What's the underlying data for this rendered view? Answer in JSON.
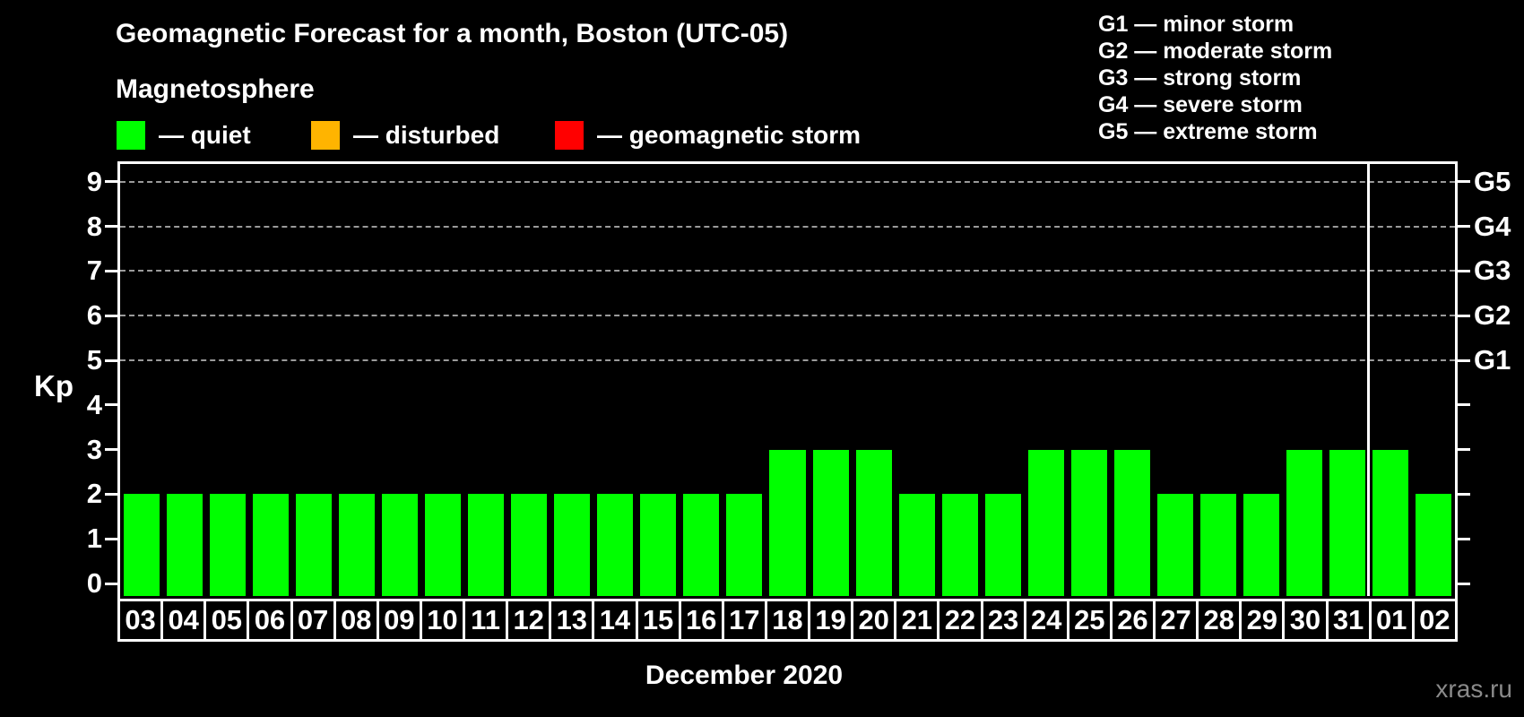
{
  "header": {
    "title": "Geomagnetic Forecast for a month, Boston (UTC-05)",
    "subtitle": "Magnetosphere"
  },
  "magnetosphere_legend": [
    {
      "name": "quiet",
      "label": "— quiet",
      "color": "#00ff00"
    },
    {
      "name": "disturbed",
      "label": "— disturbed",
      "color": "#ffb400"
    },
    {
      "name": "geomagnetic-storm",
      "label": "— geomagnetic storm",
      "color": "#ff0000"
    }
  ],
  "storm_scale_legend": [
    "G1 — minor storm",
    "G2 — moderate storm",
    "G3 — strong storm",
    "G4 — severe storm",
    "G5 — extreme storm"
  ],
  "chart_data": {
    "type": "bar",
    "title": "Geomagnetic Forecast for a month, Boston (UTC-05)",
    "series_name": "Kp forecast",
    "categories": [
      "03",
      "04",
      "05",
      "06",
      "07",
      "08",
      "09",
      "10",
      "11",
      "12",
      "13",
      "14",
      "15",
      "16",
      "17",
      "18",
      "19",
      "20",
      "21",
      "22",
      "23",
      "24",
      "25",
      "26",
      "27",
      "28",
      "29",
      "30",
      "31",
      "01",
      "02"
    ],
    "values": [
      2,
      2,
      2,
      2,
      2,
      2,
      2,
      2,
      2,
      2,
      2,
      2,
      2,
      2,
      2,
      3,
      3,
      3,
      2,
      2,
      2,
      3,
      3,
      3,
      2,
      2,
      2,
      3,
      3,
      3,
      2
    ],
    "bar_color": "#00ff00",
    "ylabel": "Kp",
    "xlabel": "December 2020",
    "ylim": [
      0,
      9
    ],
    "yticks": [
      0,
      1,
      2,
      3,
      4,
      5,
      6,
      7,
      8,
      9
    ],
    "gridlines_at": [
      5,
      6,
      7,
      8,
      9
    ],
    "grid_style": "dashed",
    "grid_color": "#9a9a9a",
    "right_axis_labels": [
      {
        "kp": 5,
        "label": "G1"
      },
      {
        "kp": 6,
        "label": "G2"
      },
      {
        "kp": 7,
        "label": "G3"
      },
      {
        "kp": 8,
        "label": "G4"
      },
      {
        "kp": 9,
        "label": "G5"
      }
    ],
    "month_separator_before_category": "01",
    "legend_position": "top"
  },
  "footer": {
    "watermark": "xras.ru"
  }
}
